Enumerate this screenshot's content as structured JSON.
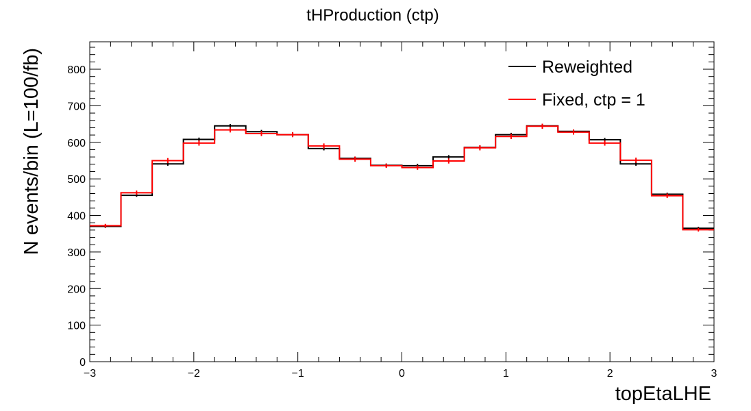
{
  "chart_data": {
    "type": "histogram-step",
    "title": "tHProduction (ctp)",
    "xlabel": "topEtaLHE",
    "ylabel": "N events/bin (L=100/fb)",
    "xlim": [
      -3,
      3
    ],
    "ylim": [
      0,
      875
    ],
    "x_ticks": [
      -3,
      -2,
      -1,
      0,
      1,
      2,
      3
    ],
    "x_tick_labels": [
      "−3",
      "−2",
      "−1",
      "0",
      "1",
      "2",
      "3"
    ],
    "y_ticks": [
      0,
      100,
      200,
      300,
      400,
      500,
      600,
      700,
      800
    ],
    "y_tick_labels": [
      "0",
      "100",
      "200",
      "300",
      "400",
      "500",
      "600",
      "700",
      "800"
    ],
    "bin_edges": [
      -3,
      -2.7,
      -2.4,
      -2.1,
      -1.8,
      -1.5,
      -1.2,
      -0.9,
      -0.6,
      -0.3,
      0,
      0.3,
      0.6,
      0.9,
      1.2,
      1.5,
      1.8,
      2.1,
      2.4,
      2.7,
      3
    ],
    "legend_position": "top-right",
    "series": [
      {
        "name": "Reweighted",
        "color": "#000000",
        "values": [
          370,
          455,
          541,
          608,
          645,
          629,
          621,
          583,
          556,
          537,
          536,
          560,
          586,
          621,
          645,
          630,
          607,
          541,
          458,
          365
        ],
        "errors": [
          4,
          4,
          5,
          5,
          5,
          5,
          5,
          5,
          5,
          5,
          5,
          5,
          5,
          5,
          5,
          5,
          5,
          5,
          4,
          4
        ]
      },
      {
        "name": "Fixed, ctp = 1",
        "color": "#ff0000",
        "values": [
          372,
          462,
          550,
          598,
          634,
          624,
          621,
          590,
          554,
          536,
          531,
          549,
          585,
          616,
          644,
          628,
          598,
          551,
          454,
          361
        ],
        "errors": [
          5,
          6,
          7,
          7,
          7,
          7,
          7,
          7,
          7,
          6,
          6,
          7,
          7,
          7,
          7,
          7,
          7,
          7,
          6,
          5
        ]
      }
    ]
  }
}
